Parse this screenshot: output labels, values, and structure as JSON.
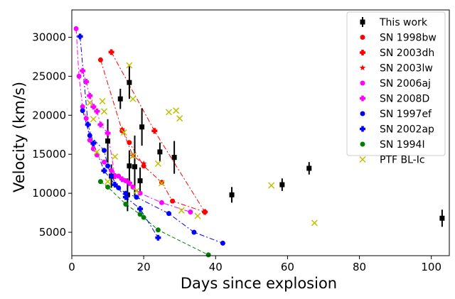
{
  "chart_data": {
    "type": "scatter",
    "title": "",
    "xlabel": "Days since explosion",
    "ylabel": "Velocity (km/s)",
    "xlim": [
      0,
      105
    ],
    "ylim": [
      2000,
      33500
    ],
    "xticks": [
      0,
      20,
      40,
      60,
      80,
      100
    ],
    "yticks": [
      5000,
      10000,
      15000,
      20000,
      25000,
      30000
    ],
    "legend_position": "top-right",
    "series": [
      {
        "name": "This work",
        "color": "#000000",
        "marker": "square",
        "line": "none",
        "errorbars": true,
        "points": [
          {
            "x": 10,
            "y": 16700,
            "err": 2800
          },
          {
            "x": 11,
            "y": 12200,
            "err": 1500
          },
          {
            "x": 13.5,
            "y": 22100,
            "err": 1300
          },
          {
            "x": 15.5,
            "y": 9800,
            "err": 2100
          },
          {
            "x": 16,
            "y": 24200,
            "err": 2100
          },
          {
            "x": 16,
            "y": 13500,
            "err": 2000
          },
          {
            "x": 17.5,
            "y": 13400,
            "err": 4000
          },
          {
            "x": 19,
            "y": 11600,
            "err": 1700
          },
          {
            "x": 19.5,
            "y": 18500,
            "err": 2400
          },
          {
            "x": 24.5,
            "y": 15300,
            "err": 1200
          },
          {
            "x": 28.5,
            "y": 14600,
            "err": 2100
          },
          {
            "x": 44.5,
            "y": 9800,
            "err": 1000
          },
          {
            "x": 58.5,
            "y": 11100,
            "err": 800
          },
          {
            "x": 66,
            "y": 13200,
            "err": 800
          },
          {
            "x": 103,
            "y": 6800,
            "err": 1100
          }
        ]
      },
      {
        "name": "SN 1998bw",
        "color": "#ff0000",
        "marker": "circle",
        "line": "dashdot",
        "points": [
          {
            "x": 8,
            "y": 27100
          },
          {
            "x": 14,
            "y": 18000
          },
          {
            "x": 16,
            "y": 16500
          },
          {
            "x": 20,
            "y": 13500
          },
          {
            "x": 25,
            "y": 11400
          },
          {
            "x": 28,
            "y": 9000
          },
          {
            "x": 37,
            "y": 7600
          }
        ]
      },
      {
        "name": "SN 2003dh",
        "color": "#ff0000",
        "marker": "plus",
        "line": "dashdot",
        "points": [
          {
            "x": 11,
            "y": 28100
          },
          {
            "x": 23,
            "y": 18000
          },
          {
            "x": 37,
            "y": 7600
          }
        ]
      },
      {
        "name": "SN 2003lw",
        "color": "#ff0000",
        "marker": "star",
        "line": "dashdot",
        "points": [
          {
            "x": 14,
            "y": 18200
          },
          {
            "x": 17,
            "y": 14800
          },
          {
            "x": 20,
            "y": 13800
          }
        ]
      },
      {
        "name": "SN 2006aj",
        "color": "#ff00ff",
        "marker": "circle",
        "line": "dashdot",
        "points": [
          {
            "x": 1.2,
            "y": 31100
          },
          {
            "x": 2,
            "y": 25000
          },
          {
            "x": 3,
            "y": 21100
          },
          {
            "x": 4,
            "y": 19600
          },
          {
            "x": 5,
            "y": 16800
          },
          {
            "x": 6,
            "y": 15700
          },
          {
            "x": 7,
            "y": 14900
          },
          {
            "x": 9,
            "y": 14000
          },
          {
            "x": 11,
            "y": 12900
          },
          {
            "x": 13,
            "y": 12200
          },
          {
            "x": 15,
            "y": 11600
          },
          {
            "x": 17,
            "y": 10800
          },
          {
            "x": 19,
            "y": 10000
          },
          {
            "x": 25,
            "y": 8800
          },
          {
            "x": 33,
            "y": 7600
          }
        ]
      },
      {
        "name": "SN 2008D",
        "color": "#ff00ff",
        "marker": "plus",
        "line": "dashdot",
        "points": [
          {
            "x": 3,
            "y": 25700
          },
          {
            "x": 4,
            "y": 24300
          },
          {
            "x": 5,
            "y": 22500
          },
          {
            "x": 6,
            "y": 21100
          },
          {
            "x": 7,
            "y": 20500
          },
          {
            "x": 8,
            "y": 18800
          },
          {
            "x": 10,
            "y": 17700
          },
          {
            "x": 12,
            "y": 12200
          },
          {
            "x": 14,
            "y": 11800
          },
          {
            "x": 16,
            "y": 11300
          }
        ]
      },
      {
        "name": "SN 1997ef",
        "color": "#0000ff",
        "marker": "circle",
        "line": "dashdot",
        "points": [
          {
            "x": 3,
            "y": 20600
          },
          {
            "x": 5,
            "y": 17400
          },
          {
            "x": 9,
            "y": 15500
          },
          {
            "x": 10,
            "y": 13500
          },
          {
            "x": 11,
            "y": 12200
          },
          {
            "x": 13,
            "y": 10700
          },
          {
            "x": 15,
            "y": 10000
          },
          {
            "x": 18,
            "y": 9500
          },
          {
            "x": 27,
            "y": 7400
          },
          {
            "x": 34,
            "y": 5000
          },
          {
            "x": 42,
            "y": 3600
          }
        ]
      },
      {
        "name": "SN 2002ap",
        "color": "#0000ff",
        "marker": "plus",
        "line": "dashdot",
        "points": [
          {
            "x": 2.3,
            "y": 30100
          },
          {
            "x": 4.5,
            "y": 18800
          },
          {
            "x": 6,
            "y": 16400
          },
          {
            "x": 9,
            "y": 12900
          },
          {
            "x": 12,
            "y": 11100
          },
          {
            "x": 15,
            "y": 9500
          },
          {
            "x": 19,
            "y": 8000
          },
          {
            "x": 24,
            "y": 4300
          }
        ]
      },
      {
        "name": "SN 1994I",
        "color": "#008000",
        "marker": "circle",
        "line": "dashed",
        "points": [
          {
            "x": 8,
            "y": 11500
          },
          {
            "x": 10,
            "y": 10800
          },
          {
            "x": 15,
            "y": 8600
          },
          {
            "x": 19,
            "y": 7300
          },
          {
            "x": 20,
            "y": 6900
          },
          {
            "x": 24,
            "y": 5300
          },
          {
            "x": 38,
            "y": 2100
          }
        ]
      },
      {
        "name": "PTF BL-Ic",
        "color": "#bfbf00",
        "marker": "x",
        "line": "none",
        "points": [
          {
            "x": 5,
            "y": 21600
          },
          {
            "x": 6,
            "y": 19500
          },
          {
            "x": 7,
            "y": 15300
          },
          {
            "x": 8.5,
            "y": 21800
          },
          {
            "x": 9,
            "y": 20500
          },
          {
            "x": 10,
            "y": 11500
          },
          {
            "x": 12,
            "y": 14700
          },
          {
            "x": 14.5,
            "y": 17800
          },
          {
            "x": 16,
            "y": 26400
          },
          {
            "x": 17,
            "y": 22100
          },
          {
            "x": 17,
            "y": 14800
          },
          {
            "x": 18,
            "y": 10300
          },
          {
            "x": 24,
            "y": 13800
          },
          {
            "x": 25,
            "y": 11300
          },
          {
            "x": 27,
            "y": 20400
          },
          {
            "x": 29,
            "y": 20600
          },
          {
            "x": 30,
            "y": 19600
          },
          {
            "x": 30.5,
            "y": 7800
          },
          {
            "x": 35,
            "y": 7100
          },
          {
            "x": 55.5,
            "y": 11000
          },
          {
            "x": 67.5,
            "y": 6200
          }
        ]
      }
    ]
  }
}
